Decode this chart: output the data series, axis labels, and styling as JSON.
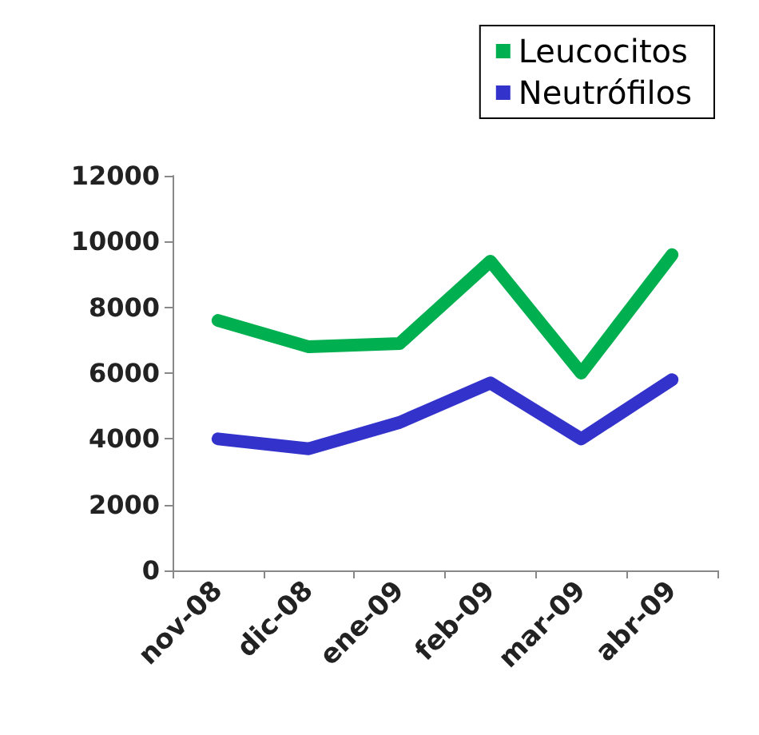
{
  "chart_data": {
    "type": "line",
    "categories": [
      "nov-08",
      "dic-08",
      "ene-09",
      "feb-09",
      "mar-09",
      "abr-09"
    ],
    "series": [
      {
        "name": "Leucocitos",
        "color": "#00b050",
        "values": [
          7600,
          6800,
          6900,
          9400,
          6000,
          9600
        ]
      },
      {
        "name": "Neutrófilos",
        "color": "#3333cc",
        "values": [
          4000,
          3700,
          4500,
          5700,
          4000,
          5800
        ]
      }
    ],
    "ylim": [
      0,
      12000
    ],
    "yticks": [
      0,
      2000,
      4000,
      6000,
      8000,
      10000,
      12000
    ],
    "grid": false,
    "legend": "top right",
    "line_style": "solid"
  }
}
